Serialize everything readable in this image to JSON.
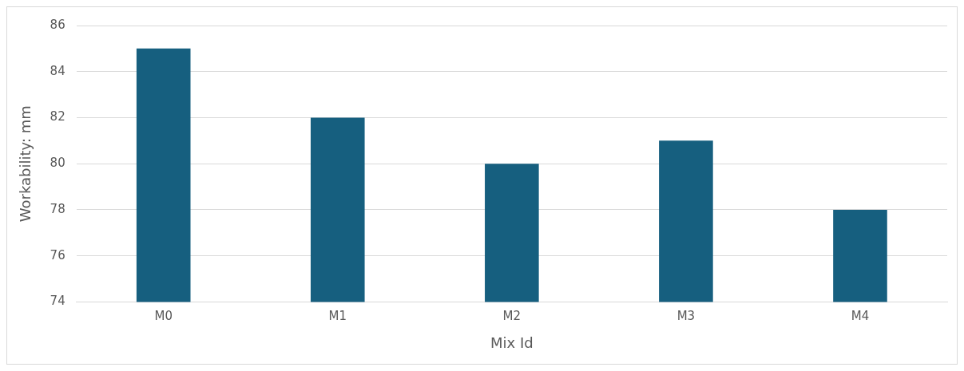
{
  "chart_data": {
    "type": "bar",
    "xlabel": "Mix Id",
    "ylabel": "Workability: mm",
    "categories": [
      "M0",
      "M1",
      "M2",
      "M3",
      "M4"
    ],
    "values": [
      85,
      82,
      80,
      81,
      78
    ],
    "color": "#165f7f",
    "ylim": [
      74,
      86
    ],
    "yticks": [
      74,
      76,
      78,
      80,
      82,
      84,
      86
    ],
    "grid": "y"
  }
}
